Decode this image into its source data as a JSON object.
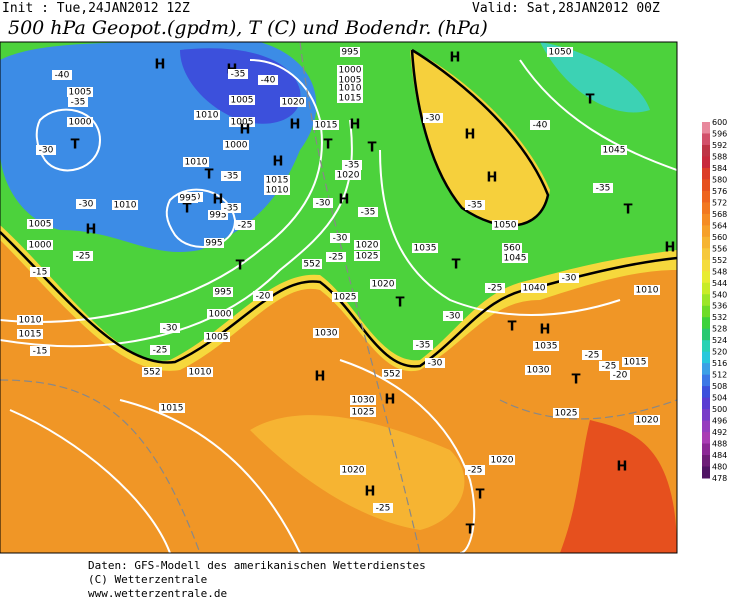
{
  "header": {
    "init": "Init : Tue,24JAN2012 12Z",
    "valid": "Valid: Sat,28JAN2012 00Z",
    "title": "500 hPa Geopot.(gpdm), T (C) und Bodendr. (hPa)"
  },
  "footer": [
    "Daten: GFS-Modell des amerikanischen Wetterdienstes",
    "(C) Wetterzentrale",
    "www.wetterzentrale.de"
  ],
  "colorbar": {
    "labels": [
      "600",
      "596",
      "592",
      "588",
      "584",
      "580",
      "576",
      "572",
      "568",
      "564",
      "560",
      "556",
      "552",
      "548",
      "544",
      "540",
      "536",
      "532",
      "528",
      "524",
      "520",
      "516",
      "512",
      "508",
      "504",
      "500",
      "496",
      "492",
      "488",
      "484",
      "480",
      "478"
    ],
    "colors": [
      "#e8889c",
      "#d2506a",
      "#be3446",
      "#c8283c",
      "#dc3c28",
      "#e6501e",
      "#ee641e",
      "#f27820",
      "#f58c24",
      "#f6a02a",
      "#f6b432",
      "#f6c83c",
      "#f4dc3c",
      "#e8ec32",
      "#c8ec28",
      "#9ce628",
      "#6edc28",
      "#3cd23c",
      "#28c870",
      "#28d2b4",
      "#28c8dc",
      "#3ca0e6",
      "#3c78e6",
      "#3c50dc",
      "#5a3cd2",
      "#783cc8",
      "#963cbe",
      "#aa3cb4",
      "#8c2896",
      "#6e1e78",
      "#501464"
    ]
  },
  "map_labels": [
    "-40",
    "1005",
    "-35",
    "1000",
    "-30",
    "T",
    "H",
    "H",
    "-35",
    "-40",
    "1005",
    "1010",
    "1020",
    "H",
    "1005",
    "H",
    "1000",
    "1010",
    "T",
    "1015",
    "H",
    "1010",
    "-35",
    "-30",
    "T",
    "H",
    "995",
    "-35",
    "995",
    "1010",
    "-30",
    "1005",
    "H",
    "1000",
    "-25",
    "-15",
    "1010",
    "1015",
    "-15",
    "995",
    "T",
    "-25",
    "995",
    "-20",
    "1000",
    "1005",
    "-30",
    "-25",
    "552",
    "1010",
    "1015",
    "H",
    "552",
    "1025",
    "1030",
    "-25",
    "995",
    "1000",
    "1005",
    "1010",
    "1015",
    "1015",
    "H",
    "T",
    "T",
    "-35",
    "1020",
    "H",
    "-30",
    "-35",
    "-30",
    "1020",
    "1025",
    "1035",
    "1020",
    "T",
    "-30",
    "-35",
    "-30",
    "552",
    "1030",
    "1025",
    "H",
    "1020",
    "H",
    "T",
    "-25",
    "1020",
    "-25",
    "T",
    "1050",
    "H",
    "-30",
    "H",
    "H",
    "-35",
    "-40",
    "1050",
    "560",
    "1045",
    "T",
    "T",
    "1045",
    "-35",
    "T",
    "H",
    "-30",
    "1040",
    "-25",
    "1010",
    "T",
    "H",
    "1035",
    "1030",
    "-25",
    "T",
    "1015",
    "-25",
    "-20",
    "1025",
    "1020",
    "H"
  ]
}
